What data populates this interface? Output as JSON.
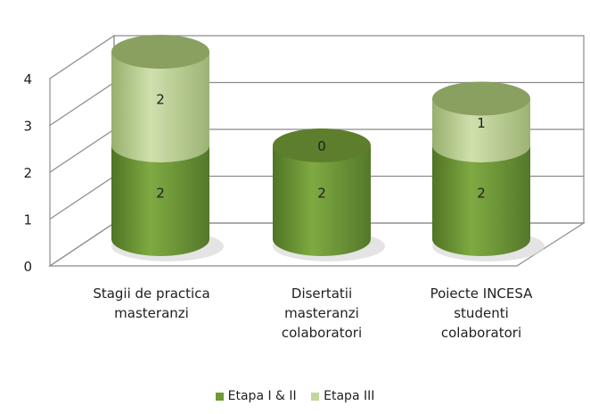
{
  "chart_data": {
    "type": "bar",
    "style": "3d-stacked-cylinder",
    "categories": [
      [
        "Stagii de practica",
        "masteranzi"
      ],
      [
        "Disertatii",
        "masteranzi",
        "colaboratori"
      ],
      [
        "Poiecte INCESA",
        "studenti",
        "colaboratori"
      ]
    ],
    "series": [
      {
        "name": "Etapa I & II",
        "values": [
          2,
          2,
          2
        ],
        "color": "#6f9a35"
      },
      {
        "name": "Etapa III",
        "values": [
          2,
          0,
          1
        ],
        "color": "#c3d69b"
      }
    ],
    "ylim": [
      0,
      4
    ],
    "yticks": [
      "0",
      "1",
      "2",
      "3",
      "4"
    ],
    "grid": true,
    "legend_position": "bottom",
    "title": "",
    "xlabel": "",
    "ylabel": ""
  }
}
